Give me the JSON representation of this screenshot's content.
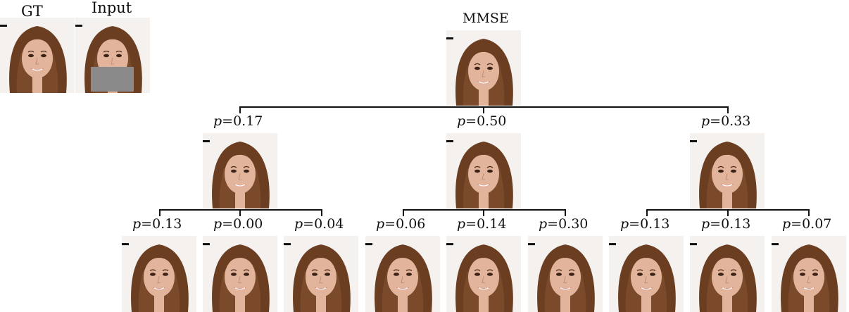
{
  "headers": {
    "gt": "GT",
    "input": "Input",
    "mmse": "MMSE"
  },
  "level1": [
    {
      "p_var": "p",
      "eq": "=",
      "value": "0.17"
    },
    {
      "p_var": "p",
      "eq": "=",
      "value": "0.50"
    },
    {
      "p_var": "p",
      "eq": "=",
      "value": "0.33"
    }
  ],
  "level2": [
    {
      "p_var": "p",
      "eq": "=",
      "value": "0.13"
    },
    {
      "p_var": "p",
      "eq": "=",
      "value": "0.00"
    },
    {
      "p_var": "p",
      "eq": "=",
      "value": "0.04"
    },
    {
      "p_var": "p",
      "eq": "=",
      "value": "0.06"
    },
    {
      "p_var": "p",
      "eq": "=",
      "value": "0.14"
    },
    {
      "p_var": "p",
      "eq": "=",
      "value": "0.30"
    },
    {
      "p_var": "p",
      "eq": "=",
      "value": "0.13"
    },
    {
      "p_var": "p",
      "eq": "=",
      "value": "0.13"
    },
    {
      "p_var": "p",
      "eq": "=",
      "value": "0.07"
    }
  ],
  "colors": {
    "hair": "#6b3e22",
    "skin": "#e2b49b",
    "background": "#f4f1ef",
    "mask": "#8a8a8a",
    "lines": "#111111"
  }
}
